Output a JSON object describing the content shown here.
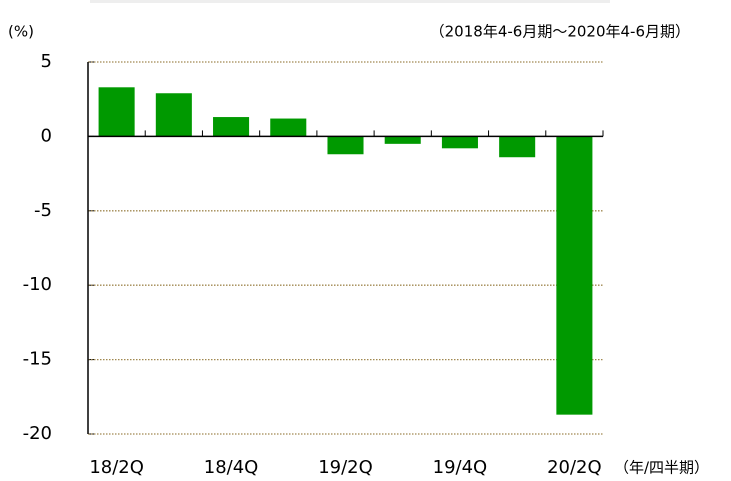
{
  "chart_data": {
    "type": "bar",
    "y_label": "(%)",
    "subtitle": "（2018年4-6月期～2020年4-6月期）",
    "x_label": "（年/四半期）",
    "categories": [
      "18/2Q",
      null,
      "18/4Q",
      null,
      "19/2Q",
      null,
      "19/4Q",
      null,
      "20/2Q"
    ],
    "values": [
      3.3,
      2.9,
      1.3,
      1.2,
      -1.2,
      -0.5,
      -0.8,
      -1.4,
      -18.7
    ],
    "color": "#009900",
    "ylim": [
      -20,
      5
    ],
    "yticks": [
      5,
      0,
      -5,
      -10,
      -15,
      -20
    ],
    "grid": true,
    "grid_color": "#a08850",
    "negative_tick_label_color": "#e00000"
  }
}
